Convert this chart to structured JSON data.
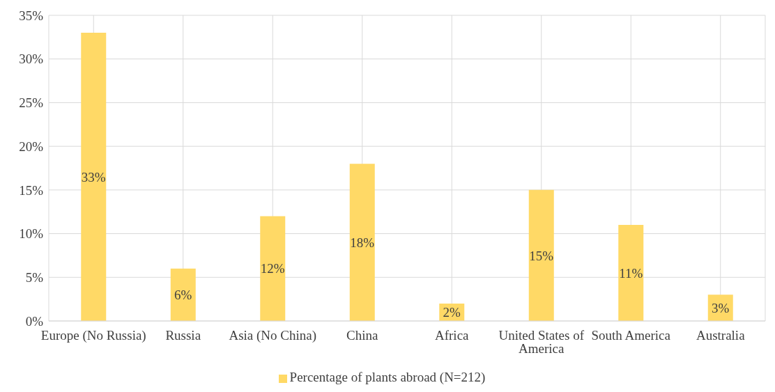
{
  "chart_data": {
    "type": "bar",
    "categories": [
      "Europe (No Russia)",
      "Russia",
      "Asia (No China)",
      "China",
      "Africa",
      "United States of America",
      "South America",
      "Australia"
    ],
    "series": [
      {
        "name": "Percentage of plants abroad (N=212)",
        "color": "#ffd966",
        "values": [
          33,
          6,
          12,
          18,
          2,
          15,
          11,
          3
        ],
        "value_labels": [
          "33%",
          "6%",
          "12%",
          "18%",
          "2%",
          "15%",
          "11%",
          "3%"
        ]
      }
    ],
    "ylim": [
      0,
      35
    ],
    "yticks": [
      {
        "value": 0,
        "label": "0%"
      },
      {
        "value": 5,
        "label": "5%"
      },
      {
        "value": 10,
        "label": "10%"
      },
      {
        "value": 15,
        "label": "15%"
      },
      {
        "value": 20,
        "label": "20%"
      },
      {
        "value": 25,
        "label": "25%"
      },
      {
        "value": 30,
        "label": "30%"
      },
      {
        "value": 35,
        "label": "35%"
      }
    ],
    "grid": true,
    "legend": "bottom"
  }
}
